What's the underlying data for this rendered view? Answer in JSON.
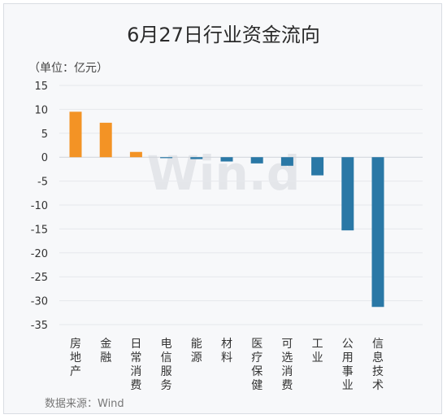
{
  "chart_data": {
    "type": "bar",
    "title": "6月27日行业资金流向",
    "unit": "（单位：亿元）",
    "source": "数据来源：Wind",
    "watermark": "Win.d",
    "categories": [
      "房地产",
      "金融",
      "日常消费",
      "电信服务",
      "能源",
      "材料",
      "医疗保健",
      "可选消费",
      "工业",
      "公用事业",
      "信息技术"
    ],
    "values": [
      9.5,
      7.2,
      1.1,
      -0.2,
      -0.4,
      -0.9,
      -1.3,
      -1.8,
      -3.8,
      -15.3,
      -31.3
    ],
    "yticks": [
      "15",
      "10",
      "5",
      "0",
      "-5",
      "-10",
      "-15",
      "-20",
      "-25",
      "-30",
      "-35"
    ],
    "ylim": [
      -35,
      15
    ],
    "colors": {
      "positive": "#f39325",
      "negative": "#2a78a6"
    },
    "grid": true
  }
}
